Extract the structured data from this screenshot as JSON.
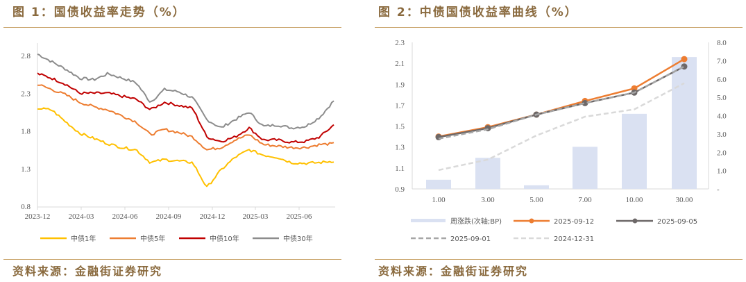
{
  "figure1": {
    "title": "图 1：国债收益率走势（%）",
    "source": "资料来源：金融街证券研究"
  },
  "figure2": {
    "title": "图 2：中债国债收益率曲线（%）",
    "source": "资料来源：金融街证券研究"
  },
  "colors": {
    "title_brown": "#8a6a3e",
    "rule_gold": "#c9a46a",
    "y1": "#ffc000",
    "y5": "#ed7d31",
    "y10": "#c00000",
    "y30": "#8c8c8c",
    "bar": "#dae1f2",
    "d0912": "#ed7d31",
    "d0905": "#6d6868",
    "d0901": "#a6a6a6",
    "d1231": "#d9d9d9"
  },
  "chart_data": [
    {
      "type": "line",
      "title": "国债收益率走势（%）",
      "xlabel": "",
      "ylabel": "%",
      "ylim": [
        0.8,
        2.8
      ],
      "yticks": [
        "2.8",
        "2.3",
        "1.8",
        "1.3",
        "0.8"
      ],
      "x": [
        "2023-12",
        "2024-01",
        "2024-02",
        "2024-03",
        "2024-04",
        "2024-05",
        "2024-06",
        "2024-07",
        "2024-08",
        "2024-09",
        "2024-10",
        "2024-11",
        "2024-12",
        "2025-01",
        "2025-02",
        "2025-03",
        "2025-04",
        "2025-05",
        "2025-06",
        "2025-07",
        "2025-08",
        "2025-09"
      ],
      "xticks": [
        "2023-12",
        "2024-03",
        "2024-06",
        "2024-09",
        "2024-12",
        "2025-03",
        "2025-06"
      ],
      "series": [
        {
          "name": "中债1年",
          "values": [
            2.1,
            2.08,
            1.92,
            1.77,
            1.7,
            1.63,
            1.58,
            1.55,
            1.38,
            1.42,
            1.4,
            1.38,
            1.05,
            1.28,
            1.45,
            1.55,
            1.48,
            1.45,
            1.38,
            1.37,
            1.38,
            1.4
          ]
        },
        {
          "name": "中债5年",
          "values": [
            2.42,
            2.35,
            2.28,
            2.18,
            2.12,
            2.08,
            2.0,
            1.92,
            1.75,
            1.82,
            1.78,
            1.72,
            1.55,
            1.58,
            1.68,
            1.75,
            1.62,
            1.6,
            1.58,
            1.58,
            1.62,
            1.63
          ]
        },
        {
          "name": "中债10年",
          "values": [
            2.56,
            2.5,
            2.42,
            2.3,
            2.3,
            2.3,
            2.26,
            2.22,
            2.08,
            2.18,
            2.14,
            2.1,
            1.72,
            1.66,
            1.72,
            1.84,
            1.68,
            1.68,
            1.65,
            1.66,
            1.72,
            1.88
          ]
        },
        {
          "name": "中债30年",
          "values": [
            2.82,
            2.72,
            2.62,
            2.5,
            2.48,
            2.56,
            2.5,
            2.44,
            2.18,
            2.35,
            2.32,
            2.24,
            1.95,
            1.84,
            1.95,
            2.05,
            1.86,
            1.88,
            1.84,
            1.86,
            1.98,
            2.2
          ]
        }
      ],
      "legend_position": "bottom",
      "grid": false
    },
    {
      "type": "bar+line",
      "title": "中债国债收益率曲线（%）",
      "categories": [
        "1.00",
        "3.00",
        "5.00",
        "7.00",
        "10.00",
        "30.00"
      ],
      "ylim": [
        0.9,
        2.3
      ],
      "yticks": [
        "2.3",
        "2.1",
        "1.9",
        "1.7",
        "1.5",
        "1.3",
        "1.1",
        "0.9"
      ],
      "y2lim": [
        0,
        8
      ],
      "y2ticks": [
        "8.0",
        "7.0",
        "6.0",
        "5.0",
        "4.0",
        "3.0",
        "2.0",
        "1.0",
        "-"
      ],
      "series": [
        {
          "name": "周涨跌(次轴;BP)",
          "type": "bar",
          "axis": "secondary",
          "values": [
            0.5,
            1.7,
            0.2,
            2.3,
            4.1,
            7.2
          ]
        },
        {
          "name": "2025-09-12",
          "type": "line",
          "marker": "circle",
          "values": [
            1.4,
            1.49,
            1.61,
            1.74,
            1.86,
            2.14
          ]
        },
        {
          "name": "2025-09-05",
          "type": "line",
          "marker": "circle",
          "values": [
            1.395,
            1.48,
            1.61,
            1.72,
            1.82,
            2.07
          ]
        },
        {
          "name": "2025-09-01",
          "type": "line",
          "dash": true,
          "values": [
            1.38,
            1.47,
            1.61,
            1.72,
            1.82,
            2.07
          ]
        },
        {
          "name": "2024-12-31",
          "type": "line",
          "dash": true,
          "values": [
            1.08,
            1.18,
            1.41,
            1.59,
            1.66,
            1.91
          ]
        }
      ],
      "legend_position": "bottom",
      "grid": false
    }
  ]
}
